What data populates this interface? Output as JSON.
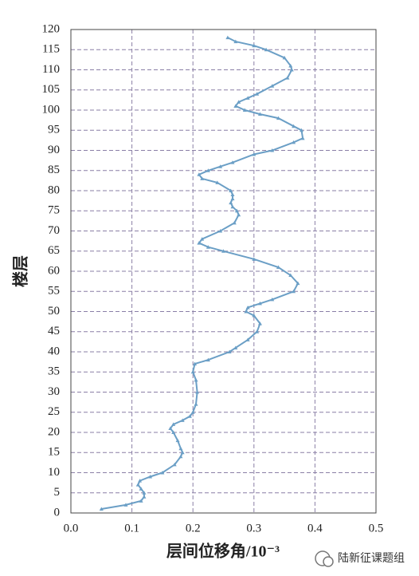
{
  "chart_data": {
    "type": "line",
    "xlabel": "层间位移角/10⁻³",
    "ylabel": "楼层",
    "watermark": "陆新征课题组",
    "x": [
      0.05,
      0.09,
      0.115,
      0.12,
      0.12,
      0.115,
      0.11,
      0.113,
      0.13,
      0.15,
      0.17,
      0.18,
      0.183,
      0.18,
      0.175,
      0.168,
      0.163,
      0.168,
      0.183,
      0.195,
      0.2,
      0.205,
      0.207,
      0.205,
      0.2,
      0.203,
      0.225,
      0.26,
      0.27,
      0.29,
      0.305,
      0.31,
      0.3,
      0.287,
      0.29,
      0.31,
      0.33,
      0.365,
      0.372,
      0.36,
      0.34,
      0.3,
      0.25,
      0.225,
      0.21,
      0.215,
      0.245,
      0.268,
      0.275,
      0.272,
      0.265,
      0.262,
      0.265,
      0.265,
      0.262,
      0.24,
      0.215,
      0.21,
      0.225,
      0.245,
      0.265,
      0.3,
      0.33,
      0.365,
      0.38,
      0.378,
      0.365,
      0.34,
      0.31,
      0.285,
      0.27,
      0.275,
      0.29,
      0.305,
      0.33,
      0.355,
      0.362,
      0.36,
      0.35,
      0.32,
      0.3,
      0.27,
      0.257
    ],
    "series": [
      {
        "color": "#6b9fc6",
        "values": [
          1,
          2,
          3,
          4,
          5,
          6,
          7,
          8,
          9,
          10,
          12,
          14,
          15,
          16,
          18,
          20,
          21,
          22,
          23,
          24,
          25,
          27,
          30,
          33,
          35,
          37,
          38,
          40,
          41,
          43,
          45,
          47,
          49,
          50,
          51,
          52,
          53,
          55,
          57,
          59,
          61,
          63,
          65,
          66,
          67,
          68,
          70,
          72,
          74,
          75,
          76,
          77,
          78,
          79,
          80,
          82,
          83,
          84,
          85,
          86,
          87,
          89,
          90,
          92,
          93,
          95,
          96,
          98,
          99,
          100,
          101,
          102,
          103,
          104,
          106,
          108,
          110,
          111,
          113,
          115,
          116,
          117,
          118
        ]
      }
    ],
    "xlim": [
      0,
      0.5
    ],
    "xticks": [
      {
        "value": 0,
        "label": "0.0"
      },
      0.1,
      0.2,
      0.3,
      0.4,
      0.5
    ],
    "ylim": [
      0,
      120
    ],
    "yticks": [
      0,
      5,
      10,
      15,
      20,
      25,
      30,
      35,
      40,
      45,
      50,
      55,
      60,
      65,
      70,
      75,
      80,
      85,
      90,
      95,
      100,
      105,
      110,
      115,
      120
    ],
    "grid": true
  }
}
